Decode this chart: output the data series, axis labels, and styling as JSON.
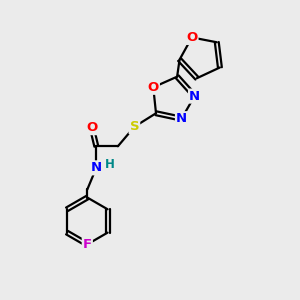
{
  "bg_color": "#ebebeb",
  "bond_color": "#000000",
  "bond_width": 1.6,
  "atom_colors": {
    "O": "#ff0000",
    "N": "#0000ff",
    "S": "#cccc00",
    "F": "#cc00cc",
    "H": "#008888",
    "C": "#000000"
  },
  "font_size": 8.5,
  "xlim": [
    0,
    10
  ],
  "ylim": [
    0,
    10
  ]
}
